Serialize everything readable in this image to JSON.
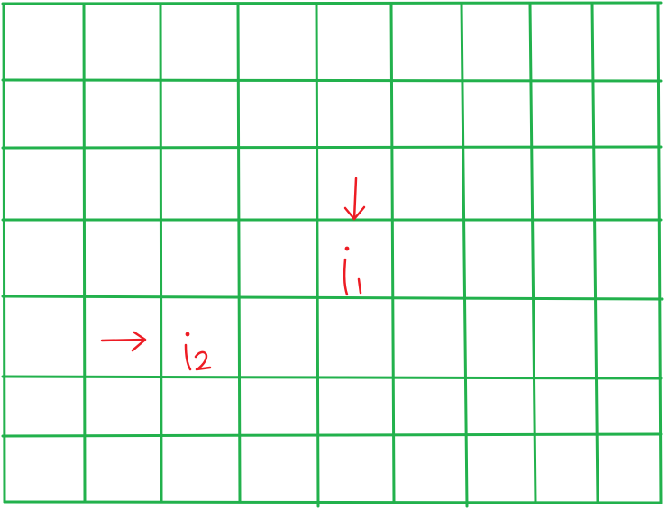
{
  "colors": {
    "grid": "#22b14c",
    "annotation": "#ed1c24",
    "background": "#ffffff"
  },
  "grid": {
    "columns": 9,
    "rows": 7
  },
  "annotations": [
    {
      "label": "i1",
      "pointer": "down-arrow-icon",
      "cell": {
        "column": 5,
        "row": 4
      }
    },
    {
      "label": "i2",
      "pointer": "right-arrow-icon",
      "cell": {
        "column": 2,
        "row": 5
      }
    }
  ]
}
